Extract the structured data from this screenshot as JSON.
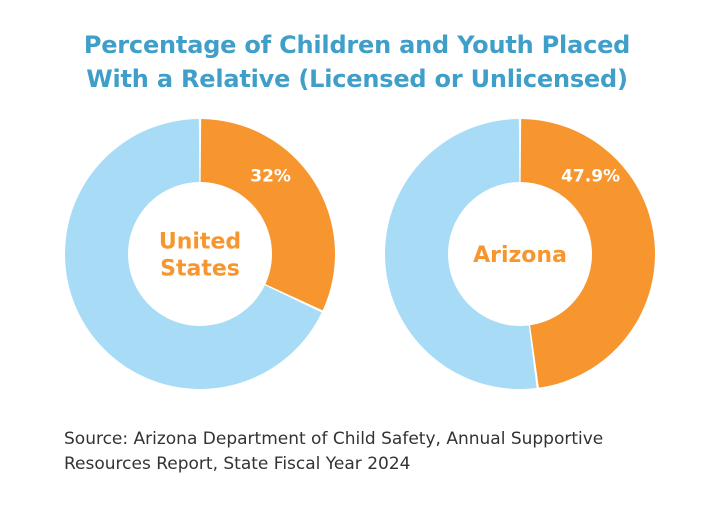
{
  "title_lines": [
    "Percentage of Children and Youth Placed",
    "With a Relative (Licensed or Unlicensed)"
  ],
  "colors": {
    "title": "#3f9fc9",
    "relative": "#f7962e",
    "other": "#a8dcf6",
    "center_label": "#f7962e",
    "value_label": "#ffffff",
    "source_text": "#333333"
  },
  "chart_data": [
    {
      "type": "pie",
      "center_label_lines": [
        "United",
        "States"
      ],
      "slices": [
        {
          "value": 32,
          "label": "32%"
        },
        {
          "value": 68,
          "label": ""
        }
      ]
    },
    {
      "type": "pie",
      "center_label_lines": [
        "Arizona"
      ],
      "slices": [
        {
          "value": 47.9,
          "label": "47.9%"
        },
        {
          "value": 52.1,
          "label": ""
        }
      ]
    }
  ],
  "source_lines": [
    "Source: Arizona Department of Child Safety, Annual Supportive",
    "Resources Report, State Fiscal Year 2024"
  ]
}
